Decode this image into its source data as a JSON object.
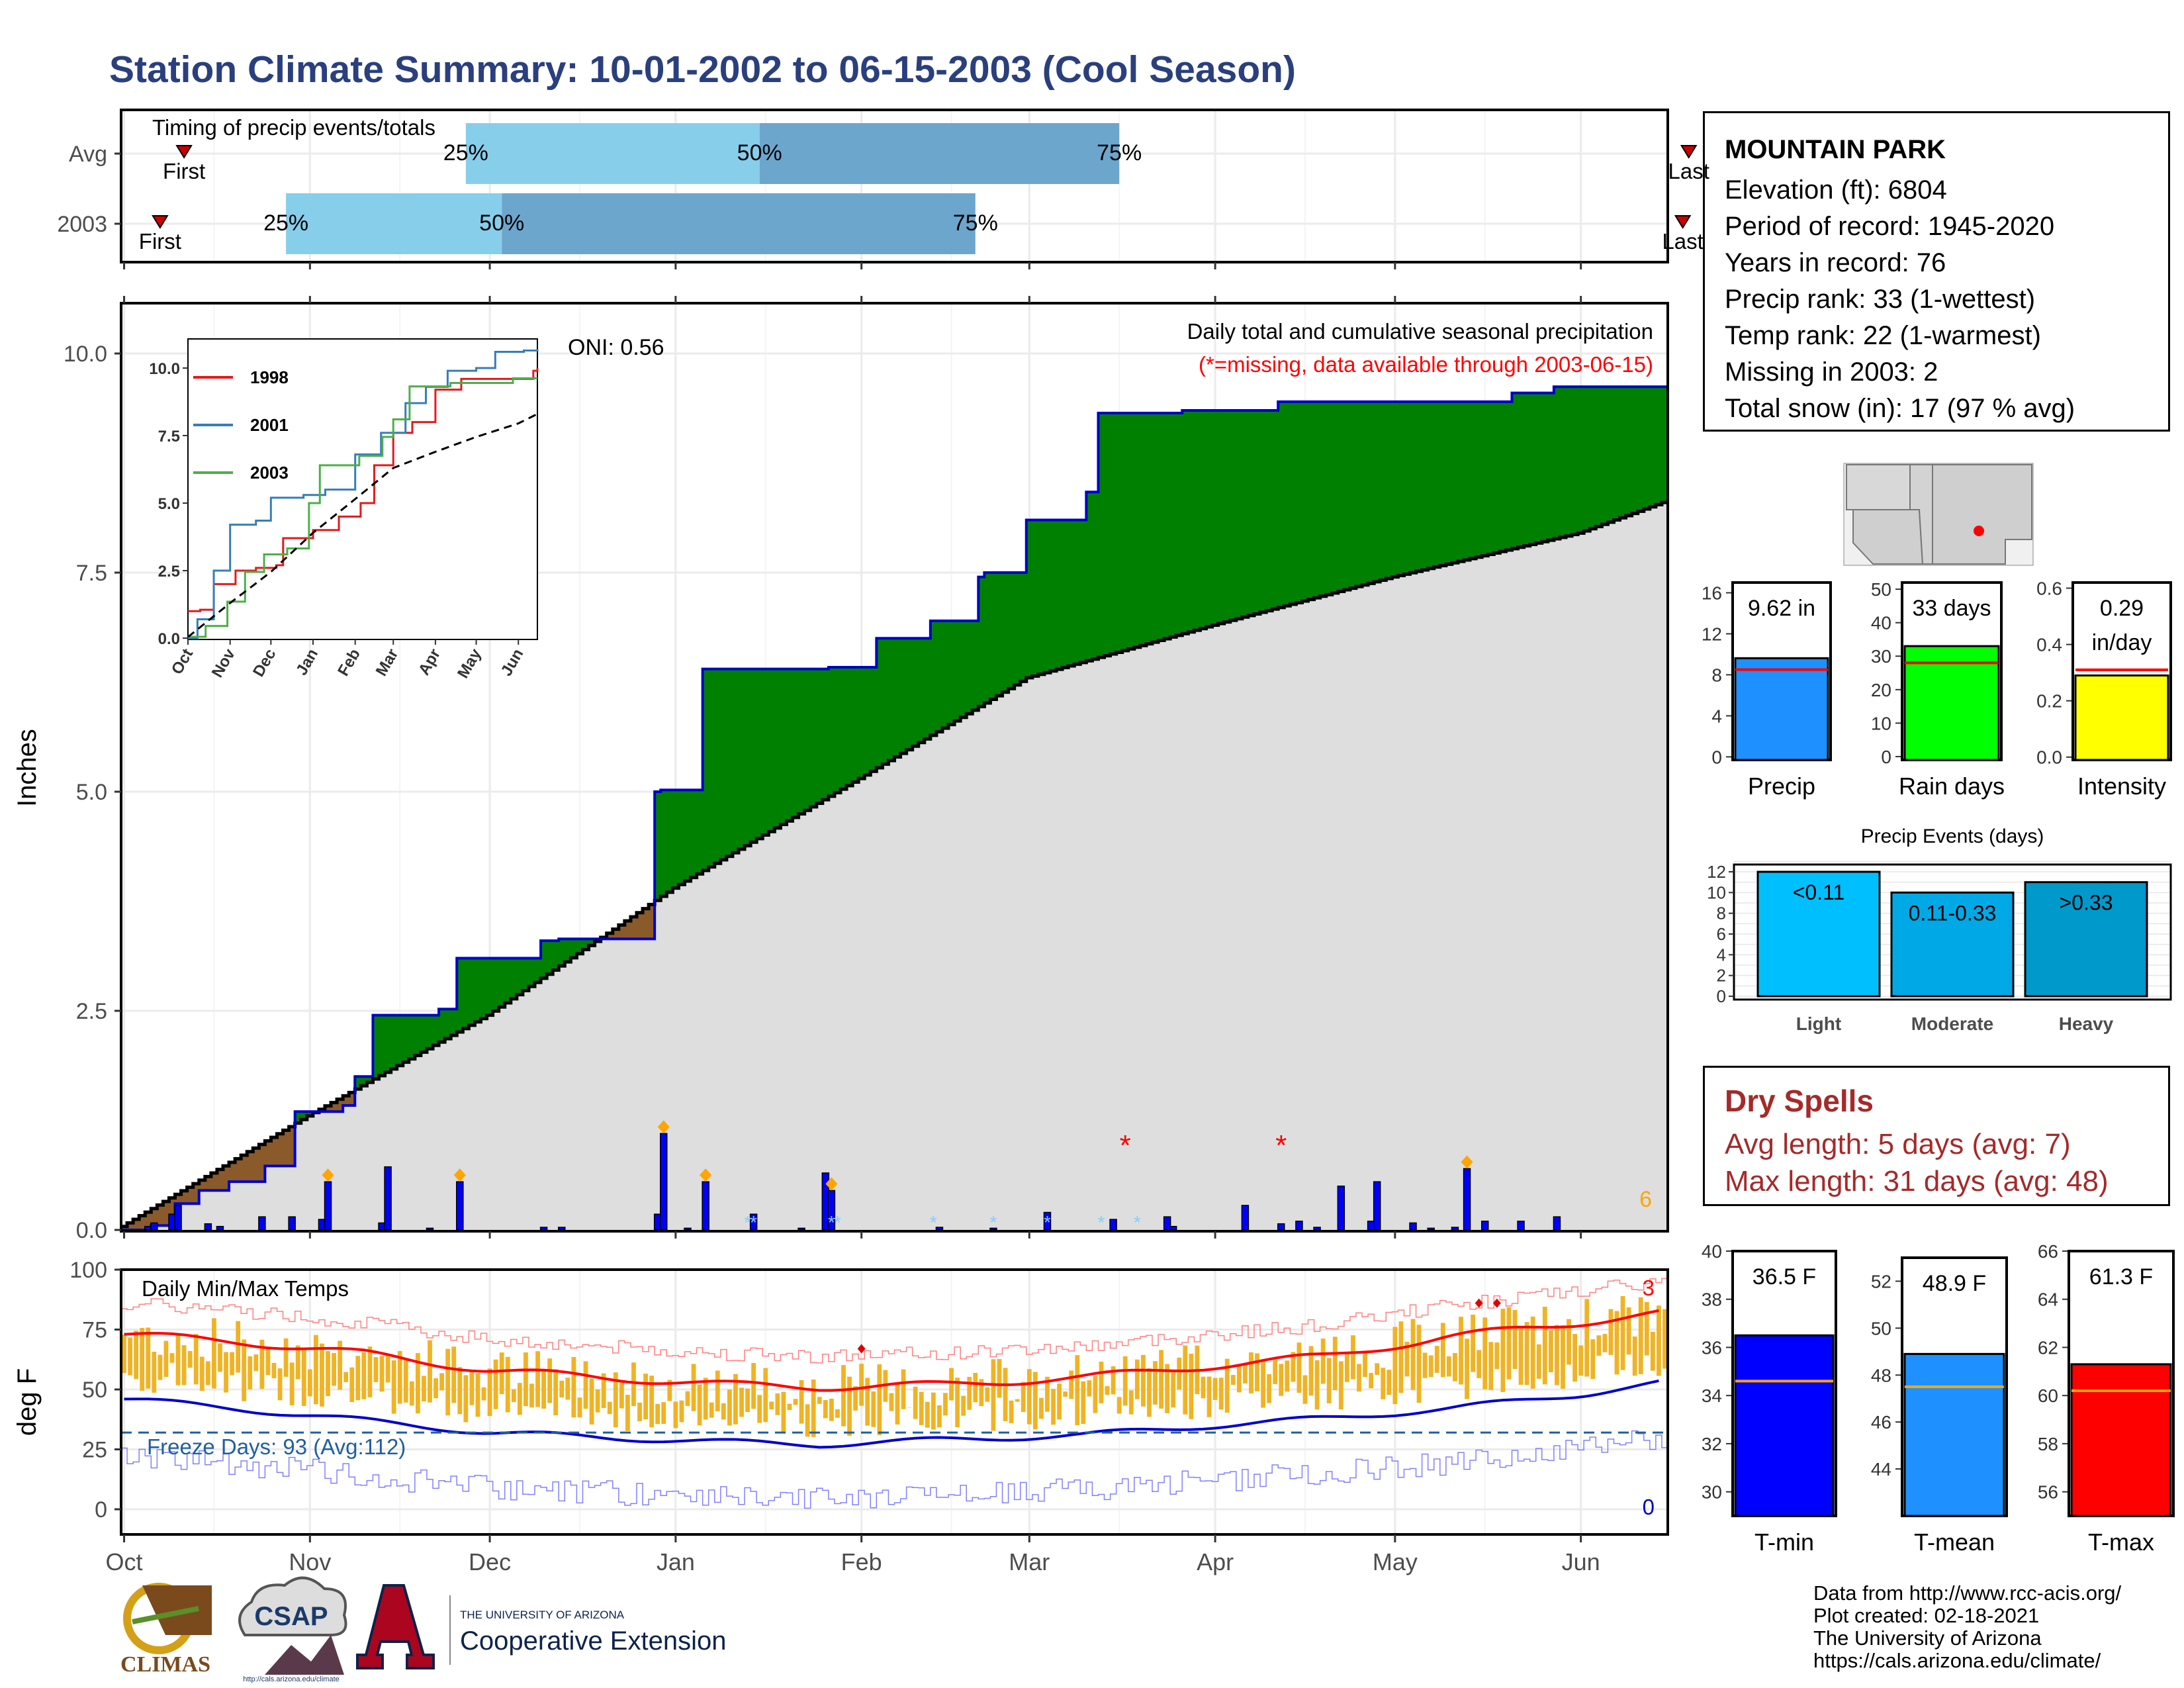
{
  "title": "Station Climate Summary: 10-01-2002 to 06-15-2003 (Cool Season)",
  "station": {
    "name": "MOUNTAIN PARK",
    "lines": [
      "Elevation (ft): 6804",
      "Period of record: 1945-2020",
      "Years in record: 76",
      "Precip rank: 33 (1-wettest)",
      "Temp rank: 22 (1-warmest)",
      "Missing in 2003: 2",
      "Total snow (in): 17 (97 % avg)"
    ]
  },
  "timing": {
    "title": "Timing of precip events/totals",
    "first_label": "First",
    "last_label": "Last",
    "rows": [
      {
        "label": "Avg",
        "first": "2002-10-11",
        "p25": "2002-11-27",
        "p50": "2003-01-15",
        "p75": "2003-03-16",
        "last": "2003-06-19"
      },
      {
        "label": "2003",
        "first": "2002-10-07",
        "p25": "2002-10-28",
        "p50": "2002-12-03",
        "p75": "2003-02-20",
        "last": "2003-06-18"
      }
    ],
    "pct_labels": [
      "25%",
      "50%",
      "75%"
    ]
  },
  "precip_panel": {
    "ylabel": "Inches",
    "yticks": [
      "0.0",
      "2.5",
      "5.0",
      "7.5",
      "10.0"
    ],
    "annot_main": "Daily total and cumulative seasonal precipitation",
    "annot_missing": "(*=missing, data available through 2003-06-15)",
    "oni": "ONI: 0.56",
    "snow_count": "6"
  },
  "inset": {
    "legend": [
      {
        "name": "1998",
        "color": "#E41A1C"
      },
      {
        "name": "2001",
        "color": "#377EB8"
      },
      {
        "name": "2003",
        "color": "#4DAF4A"
      }
    ],
    "yticks": [
      "0.0",
      "2.5",
      "5.0",
      "7.5",
      "10.0"
    ],
    "xticks": [
      "Oct",
      "Nov",
      "Dec",
      "Jan",
      "Feb",
      "Mar",
      "Apr",
      "May",
      "Jun"
    ]
  },
  "temp_panel": {
    "ylabel": "deg F",
    "title": "Daily Min/Max Temps",
    "freeze": "Freeze Days: 93 (Avg:112)",
    "yticks": [
      "0",
      "25",
      "50",
      "75",
      "100"
    ],
    "max_count": "3",
    "min_count": "0"
  },
  "xaxis": [
    "Oct",
    "Nov",
    "Dec",
    "Jan",
    "Feb",
    "Mar",
    "Apr",
    "May",
    "Jun"
  ],
  "bars": {
    "precip": {
      "label": "Precip",
      "value_text": "9.62 in",
      "yticks": [
        "0",
        "4",
        "8",
        "12",
        "16"
      ]
    },
    "raindays": {
      "label": "Rain days",
      "value_text": "33 days",
      "yticks": [
        "0",
        "10",
        "20",
        "30",
        "40",
        "50"
      ]
    },
    "intensity": {
      "label": "Intensity",
      "value_text_1": "0.29",
      "value_text_2": "in/day",
      "yticks": [
        "0.0",
        "0.2",
        "0.4",
        "0.6"
      ]
    }
  },
  "events": {
    "title": "Precip Events (days)",
    "yticks": [
      "0",
      "2",
      "4",
      "6",
      "8",
      "10",
      "12"
    ],
    "categories": [
      "Light",
      "Moderate",
      "Heavy"
    ],
    "labels": [
      "<0.11",
      "0.11-0.33",
      ">0.33"
    ]
  },
  "dry": {
    "title": "Dry Spells",
    "avg": "Avg length: 5 days (avg: 7)",
    "max": "Max length: 31 days (avg: 48)"
  },
  "temps": {
    "tmin": {
      "label": "T-min",
      "value_text": "36.5 F",
      "yticks": [
        "30",
        "32",
        "34",
        "36",
        "38",
        "40"
      ]
    },
    "tmean": {
      "label": "T-mean",
      "value_text": "48.9 F",
      "yticks": [
        "44",
        "46",
        "48",
        "50",
        "52"
      ]
    },
    "tmax": {
      "label": "T-max",
      "value_text": "61.3 F",
      "yticks": [
        "56",
        "58",
        "60",
        "62",
        "64",
        "66"
      ]
    }
  },
  "credits": [
    "Data from http://www.rcc-acis.org/",
    "Plot created: 02-18-2021",
    "The University of Arizona",
    "https://cals.arizona.edu/climate/"
  ],
  "logos": {
    "climas": "CLIMAS",
    "csap": "CSAP",
    "csap_url": "http://cals.arizona.edu/climate",
    "ua_small": "THE UNIVERSITY OF ARIZONA",
    "ua_big": "Cooperative Extension"
  },
  "colors": {
    "title": "#2A3F7E",
    "green": "#008000",
    "grey": "#DEDEDE",
    "daily_bar": "#0000FF",
    "snow": "#FFA500",
    "missing": "#FF0000",
    "temp_bar": "#F0B323",
    "tmax_line": "#FF0000",
    "tmin_line": "#0000CC",
    "freeze": "#1F5F9F",
    "light": "#00BFFF",
    "moderate": "#00A9E6",
    "heavy": "#0099CC",
    "precip_bar": "#1E90FF",
    "rain_bar": "#00FF00",
    "int_bar": "#FFFF00",
    "tmin_bar": "#0000FF",
    "tmean_bar": "#1E90FF",
    "tmax_bar": "#FF0000",
    "dry": "#A52A2A"
  },
  "chart_data": [
    {
      "type": "area",
      "title": "Daily total and cumulative seasonal precipitation",
      "ylabel": "Inches",
      "ylim": [
        0,
        10.5
      ],
      "xlim": [
        "2002-10-01",
        "2003-06-15"
      ],
      "series": [
        {
          "name": "cumulative 2003",
          "points": [
            [
              "2002-10-01",
              0
            ],
            [
              "2002-10-06",
              0.05
            ],
            [
              "2002-10-10",
              0.3
            ],
            [
              "2002-10-14",
              0.45
            ],
            [
              "2002-10-19",
              0.55
            ],
            [
              "2002-10-25",
              0.73
            ],
            [
              "2002-10-30",
              1.35
            ],
            [
              "2002-11-07",
              1.42
            ],
            [
              "2002-11-09",
              1.75
            ],
            [
              "2002-11-12",
              2.45
            ],
            [
              "2002-11-23",
              2.52
            ],
            [
              "2002-11-26",
              3.1
            ],
            [
              "2002-12-10",
              3.3
            ],
            [
              "2002-12-13",
              3.32
            ],
            [
              "2002-12-29",
              5.0
            ],
            [
              "2002-12-30",
              5.02
            ],
            [
              "2003-01-06",
              6.4
            ],
            [
              "2003-01-27",
              6.42
            ],
            [
              "2003-02-04",
              6.75
            ],
            [
              "2003-02-13",
              6.95
            ],
            [
              "2003-02-21",
              7.45
            ],
            [
              "2003-02-22",
              7.5
            ],
            [
              "2003-03-01",
              8.1
            ],
            [
              "2003-03-04",
              8.1
            ],
            [
              "2003-03-11",
              8.42
            ],
            [
              "2003-03-13",
              9.32
            ],
            [
              "2003-03-27",
              9.35
            ],
            [
              "2003-04-12",
              9.45
            ],
            [
              "2003-05-21",
              9.55
            ],
            [
              "2003-05-28",
              9.62
            ],
            [
              "2003-06-15",
              9.62
            ]
          ]
        },
        {
          "name": "average",
          "points": [
            [
              "2002-10-01",
              0.04
            ],
            [
              "2002-11-01",
              1.3
            ],
            [
              "2002-12-01",
              2.45
            ],
            [
              "2003-01-01",
              3.9
            ],
            [
              "2003-02-01",
              5.15
            ],
            [
              "2003-03-01",
              6.3
            ],
            [
              "2003-04-01",
              6.9
            ],
            [
              "2003-05-01",
              7.45
            ],
            [
              "2003-06-01",
              7.95
            ],
            [
              "2003-06-15",
              8.3
            ]
          ]
        }
      ],
      "daily": [
        [
          "2002-10-05",
          0.04
        ],
        [
          "2002-10-06",
          0.08
        ],
        [
          "2002-10-09",
          0.18
        ],
        [
          "2002-10-10",
          0.28
        ],
        [
          "2002-10-15",
          0.07
        ],
        [
          "2002-10-17",
          0.04
        ],
        [
          "2002-10-24",
          0.15
        ],
        [
          "2002-10-29",
          0.15
        ],
        [
          "2002-11-03",
          0.12
        ],
        [
          "2002-11-04",
          0.55
        ],
        [
          "2002-11-13",
          0.08
        ],
        [
          "2002-11-14",
          0.72
        ],
        [
          "2002-11-21",
          0.02
        ],
        [
          "2002-11-26",
          0.55
        ],
        [
          "2002-12-10",
          0.03
        ],
        [
          "2002-12-13",
          0.03
        ],
        [
          "2002-12-29",
          0.18
        ],
        [
          "2002-12-30",
          1.1
        ],
        [
          "2003-01-03",
          0.02
        ],
        [
          "2003-01-06",
          0.55
        ],
        [
          "2003-01-14",
          0.18
        ],
        [
          "2003-01-22",
          0.02
        ],
        [
          "2003-01-26",
          0.65
        ],
        [
          "2003-01-27",
          0.45
        ],
        [
          "2003-02-14",
          0.03
        ],
        [
          "2003-02-23",
          0.02
        ],
        [
          "2003-03-04",
          0.2
        ],
        [
          "2003-03-15",
          0.12
        ],
        [
          "2003-03-24",
          0.15
        ],
        [
          "2003-03-25",
          0.04
        ],
        [
          "2003-04-06",
          0.28
        ],
        [
          "2003-04-12",
          0.07
        ],
        [
          "2003-04-15",
          0.1
        ],
        [
          "2003-04-18",
          0.03
        ],
        [
          "2003-04-22",
          0.5
        ],
        [
          "2003-04-27",
          0.1
        ],
        [
          "2003-04-28",
          0.55
        ],
        [
          "2003-05-04",
          0.08
        ],
        [
          "2003-05-07",
          0.02
        ],
        [
          "2003-05-11",
          0.03
        ],
        [
          "2003-05-13",
          0.7
        ],
        [
          "2003-05-16",
          0.1
        ],
        [
          "2003-05-22",
          0.1
        ],
        [
          "2003-05-28",
          0.15
        ]
      ],
      "snow_markers": [
        "2002-11-04",
        "2002-11-26",
        "2002-12-30",
        "2003-01-06",
        "2003-01-27",
        "2003-05-13"
      ],
      "missing": [
        "2003-03-17",
        "2003-04-12"
      ]
    },
    {
      "type": "bar",
      "title": "Daily Min/Max Temps",
      "ylabel": "deg F",
      "ylim": [
        -10,
        100
      ],
      "freeze_line": 32,
      "tmax_smooth": [
        [
          "2002-10-01",
          73
        ],
        [
          "2002-10-20",
          70
        ],
        [
          "2002-11-10",
          65
        ],
        [
          "2002-12-01",
          58
        ],
        [
          "2002-12-20",
          55
        ],
        [
          "2003-01-10",
          52
        ],
        [
          "2003-01-25",
          51
        ],
        [
          "2003-02-15",
          52
        ],
        [
          "2003-03-10",
          55
        ],
        [
          "2003-04-01",
          60
        ],
        [
          "2003-04-20",
          64
        ],
        [
          "2003-05-10",
          72
        ],
        [
          "2003-06-01",
          78
        ],
        [
          "2003-06-15",
          82
        ]
      ],
      "tmin_smooth": [
        [
          "2002-10-01",
          46
        ],
        [
          "2002-10-20",
          42
        ],
        [
          "2002-11-10",
          37
        ],
        [
          "2002-12-01",
          32
        ],
        [
          "2002-12-20",
          30
        ],
        [
          "2003-01-10",
          28
        ],
        [
          "2003-01-25",
          27
        ],
        [
          "2003-02-15",
          29
        ],
        [
          "2003-03-10",
          31
        ],
        [
          "2003-04-01",
          35
        ],
        [
          "2003-04-20",
          38
        ],
        [
          "2003-05-10",
          42
        ],
        [
          "2003-06-01",
          48
        ],
        [
          "2003-06-15",
          53
        ]
      ]
    },
    {
      "type": "bar",
      "title": "Precip Events (days)",
      "categories": [
        "Light",
        "Moderate",
        "Heavy"
      ],
      "values": [
        12,
        10,
        11
      ],
      "ylim": [
        0,
        13
      ]
    },
    {
      "type": "bar",
      "categories": [
        "Precip",
        "Rain days",
        "Intensity"
      ],
      "values": [
        9.62,
        33,
        0.29
      ],
      "averages": [
        8.5,
        28,
        0.31
      ]
    },
    {
      "type": "bar",
      "categories": [
        "T-min",
        "T-mean",
        "T-max"
      ],
      "values": [
        36.5,
        48.9,
        61.3
      ],
      "averages": [
        34.6,
        47.5,
        60.2
      ]
    },
    {
      "type": "line",
      "title": "",
      "series": [
        {
          "name": "1998",
          "points": [
            [
              "2002-10-01",
              1.0
            ],
            [
              "2002-10-10",
              1.05
            ],
            [
              "2002-10-20",
              2.0
            ],
            [
              "2002-11-05",
              2.5
            ],
            [
              "2002-11-20",
              2.6
            ],
            [
              "2002-12-05",
              2.7
            ],
            [
              "2002-12-10",
              3.7
            ],
            [
              "2003-01-01",
              4.0
            ],
            [
              "2003-01-20",
              4.5
            ],
            [
              "2003-02-05",
              5.0
            ],
            [
              "2003-02-15",
              6.4
            ],
            [
              "2003-03-01",
              7.6
            ],
            [
              "2003-03-15",
              8.0
            ],
            [
              "2003-04-01",
              9.2
            ],
            [
              "2003-04-20",
              9.6
            ],
            [
              "2003-05-25",
              9.6
            ],
            [
              "2003-06-08",
              9.6
            ],
            [
              "2003-06-12",
              9.9
            ],
            [
              "2003-06-15",
              10.0
            ]
          ]
        },
        {
          "name": "2001",
          "points": [
            [
              "2002-10-01",
              0.0
            ],
            [
              "2002-10-08",
              0.7
            ],
            [
              "2002-10-20",
              2.5
            ],
            [
              "2002-11-01",
              4.2
            ],
            [
              "2002-11-20",
              4.35
            ],
            [
              "2002-12-01",
              5.2
            ],
            [
              "2002-12-25",
              5.3
            ],
            [
              "2003-01-10",
              5.5
            ],
            [
              "2003-02-01",
              6.8
            ],
            [
              "2003-02-20",
              7.6
            ],
            [
              "2003-03-10",
              8.7
            ],
            [
              "2003-03-25",
              9.3
            ],
            [
              "2003-04-10",
              9.9
            ],
            [
              "2003-05-01",
              10.0
            ],
            [
              "2003-05-15",
              10.6
            ],
            [
              "2003-06-05",
              10.65
            ],
            [
              "2003-06-15",
              10.7
            ]
          ]
        },
        {
          "name": "2003",
          "points": [
            [
              "2002-10-01",
              0.05
            ],
            [
              "2002-10-14",
              0.45
            ],
            [
              "2002-10-30",
              1.35
            ],
            [
              "2002-11-12",
              2.45
            ],
            [
              "2002-11-26",
              3.1
            ],
            [
              "2002-12-13",
              3.32
            ],
            [
              "2002-12-29",
              5.0
            ],
            [
              "2003-01-06",
              6.4
            ],
            [
              "2003-02-04",
              6.75
            ],
            [
              "2003-02-21",
              7.45
            ],
            [
              "2003-03-01",
              8.1
            ],
            [
              "2003-03-13",
              9.32
            ],
            [
              "2003-04-12",
              9.45
            ],
            [
              "2003-05-28",
              9.62
            ],
            [
              "2003-06-15",
              9.62
            ]
          ]
        },
        {
          "name": "average",
          "points": [
            [
              "2002-10-01",
              0.04
            ],
            [
              "2002-11-01",
              1.3
            ],
            [
              "2002-12-01",
              2.45
            ],
            [
              "2003-01-01",
              3.9
            ],
            [
              "2003-02-01",
              5.15
            ],
            [
              "2003-03-01",
              6.3
            ],
            [
              "2003-04-01",
              6.9
            ],
            [
              "2003-05-01",
              7.45
            ],
            [
              "2003-06-01",
              7.95
            ],
            [
              "2003-06-15",
              8.3
            ]
          ]
        }
      ],
      "ylim": [
        0,
        11
      ]
    }
  ]
}
